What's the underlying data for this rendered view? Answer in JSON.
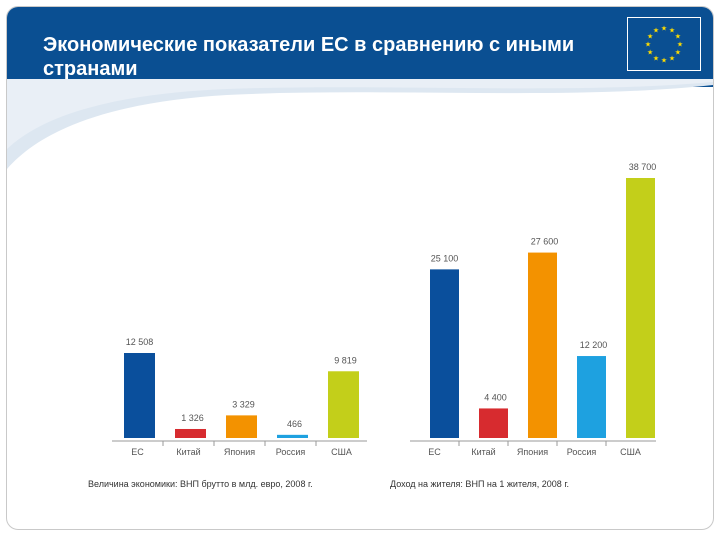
{
  "header": {
    "title": "Экономические показатели ЕС в сравнению с иными странами"
  },
  "colors": {
    "eu": "#0a4f9c",
    "china": "#d72b2f",
    "japan": "#f39200",
    "russia": "#1ea1e0",
    "usa": "#c3cf1a",
    "header_bg": "#0a4f92",
    "flag_star": "#ffdd00"
  },
  "chart_data": [
    {
      "type": "bar",
      "title": "Величина экономики: ВНП брутто в млд. евро, 2008 г.",
      "categories": [
        "ЕС",
        "Китай",
        "Япония",
        "Россия",
        "США"
      ],
      "values": [
        12508,
        1326,
        3329,
        466,
        9819
      ],
      "value_labels": [
        "12 508",
        "1 326",
        "3 329",
        "466",
        "9 819"
      ],
      "xlabel": "",
      "ylabel": "",
      "ylim": [
        0,
        12508
      ]
    },
    {
      "type": "bar",
      "title": "Доход на жителя: ВНП на 1 жителя, 2008 г.",
      "categories": [
        "ЕС",
        "Китай",
        "Япония",
        "Россия",
        "США"
      ],
      "values": [
        25100,
        4400,
        27600,
        12200,
        38700
      ],
      "value_labels": [
        "25 100",
        "4 400",
        "27 600",
        "12 200",
        "38 700"
      ],
      "xlabel": "",
      "ylabel": "",
      "ylim": [
        0,
        38700
      ]
    }
  ]
}
